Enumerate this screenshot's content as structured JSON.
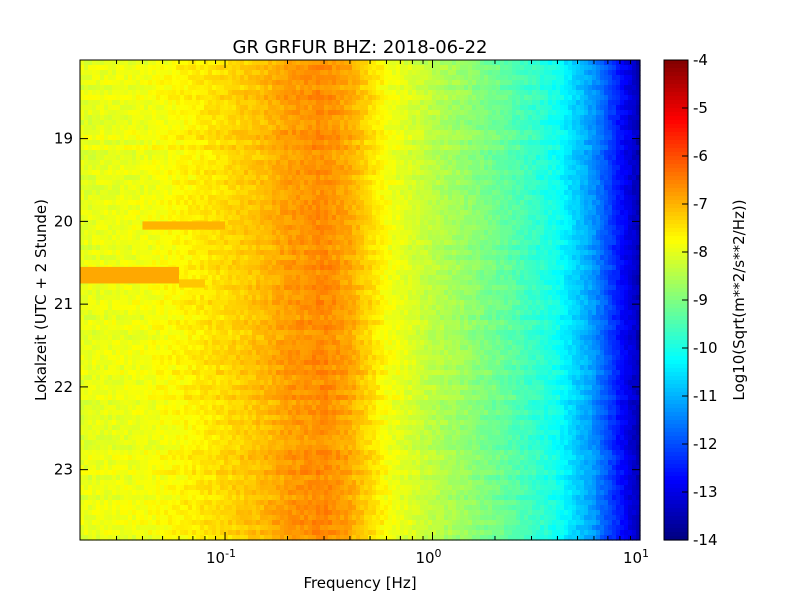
{
  "chart_data": {
    "type": "heatmap",
    "title": "GR GRFUR BHZ: 2018-06-22",
    "xlabel": "Frequency [Hz]",
    "ylabel": "Lokalzeit (UTC + 2 Stunde)",
    "x_scale": "log",
    "xlim": [
      0.02,
      10
    ],
    "ylim": [
      18.05,
      23.85
    ],
    "y_inverted": true,
    "x_ticks": [
      {
        "value": 0.1,
        "base": "10",
        "exp": "-1"
      },
      {
        "value": 1,
        "base": "10",
        "exp": "0"
      },
      {
        "value": 10,
        "base": "10",
        "exp": "1"
      }
    ],
    "y_ticks": [
      {
        "value": 19,
        "label": "19"
      },
      {
        "value": 20,
        "label": "20"
      },
      {
        "value": 21,
        "label": "21"
      },
      {
        "value": 22,
        "label": "22"
      },
      {
        "value": 23,
        "label": "23"
      }
    ],
    "colorbar": {
      "label": "Log10(Sqrt(m**2/s**2/Hz))",
      "range": [
        -14,
        -4
      ],
      "colormap": "jet",
      "ticks": [
        "-4",
        "-5",
        "-6",
        "-7",
        "-8",
        "-9",
        "-10",
        "-11",
        "-12",
        "-13",
        "-14"
      ]
    },
    "spectrum_profile": [
      {
        "freq": 0.02,
        "value": -8.0
      },
      {
        "freq": 0.04,
        "value": -7.9
      },
      {
        "freq": 0.06,
        "value": -7.7
      },
      {
        "freq": 0.1,
        "value": -7.4
      },
      {
        "freq": 0.15,
        "value": -7.1
      },
      {
        "freq": 0.2,
        "value": -6.8
      },
      {
        "freq": 0.3,
        "value": -6.6
      },
      {
        "freq": 0.4,
        "value": -6.9
      },
      {
        "freq": 0.6,
        "value": -7.8
      },
      {
        "freq": 1.0,
        "value": -8.4
      },
      {
        "freq": 1.5,
        "value": -8.8
      },
      {
        "freq": 2.5,
        "value": -9.4
      },
      {
        "freq": 4.0,
        "value": -10.1
      },
      {
        "freq": 6.0,
        "value": -11.3
      },
      {
        "freq": 8.0,
        "value": -12.6
      },
      {
        "freq": 10.0,
        "value": -13.5
      }
    ],
    "anomalies": [
      {
        "f_start": 0.04,
        "f_end": 0.1,
        "t_start": 20.0,
        "t_end": 20.1,
        "value": -7.0
      },
      {
        "f_start": 0.02,
        "f_end": 0.06,
        "t_start": 20.55,
        "t_end": 20.75,
        "value": -6.9
      },
      {
        "f_start": 0.06,
        "f_end": 0.08,
        "t_start": 20.7,
        "t_end": 20.8,
        "value": -7.2
      }
    ]
  }
}
